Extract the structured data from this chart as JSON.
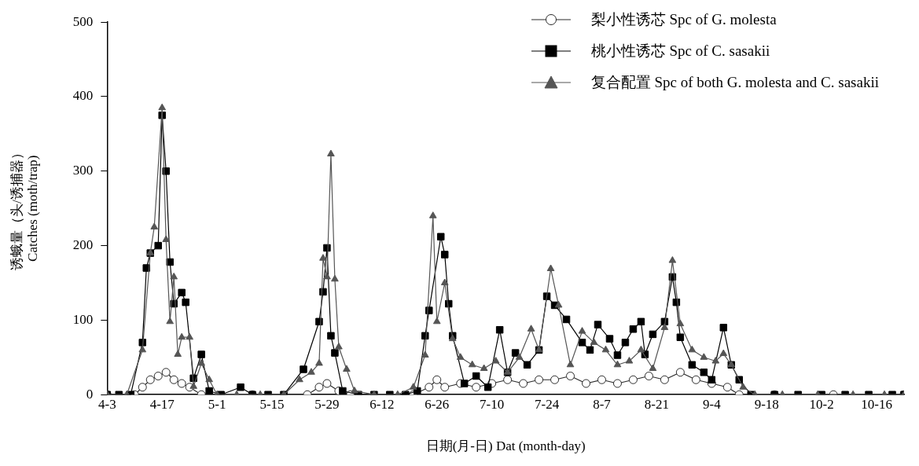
{
  "chart_data": {
    "type": "line",
    "xlabel": "日期(月-日) Dat (month-day)",
    "ylabel": "诱蛾量（头/诱捕器）\nCatches (moth/trap)",
    "xlim": [
      "--04-03",
      "--10-23"
    ],
    "ylim": [
      0,
      500
    ],
    "yticks": [
      0,
      100,
      200,
      300,
      400,
      500
    ],
    "xticks": [
      {
        "value": "--04-03",
        "label": "4-3"
      },
      {
        "value": "--04-17",
        "label": "4-17"
      },
      {
        "value": "--05-01",
        "label": "5-1"
      },
      {
        "value": "--05-15",
        "label": "5-15"
      },
      {
        "value": "--05-29",
        "label": "5-29"
      },
      {
        "value": "--06-12",
        "label": "6-12"
      },
      {
        "value": "--06-26",
        "label": "6-26"
      },
      {
        "value": "--07-10",
        "label": "7-10"
      },
      {
        "value": "--07-24",
        "label": "7-24"
      },
      {
        "value": "--08-07",
        "label": "8-7"
      },
      {
        "value": "--08-21",
        "label": "8-21"
      },
      {
        "value": "--09-04",
        "label": "9-4"
      },
      {
        "value": "--09-18",
        "label": "9-18"
      },
      {
        "value": "--10-02",
        "label": "10-2"
      },
      {
        "value": "--10-16",
        "label": "10-16"
      }
    ],
    "grid": false,
    "legend": "top right",
    "line_style": "solid",
    "series": [
      {
        "name": "梨小性诱芯 Spc of G. molesta",
        "color": "#2a2a2a",
        "marker": "circle",
        "x": [
          "--04-03",
          "--04-10",
          "--04-12",
          "--04-14",
          "--04-16",
          "--04-18",
          "--04-20",
          "--04-22",
          "--04-24",
          "--04-27",
          "--05-10",
          "--05-24",
          "--05-27",
          "--05-29",
          "--06-01",
          "--06-04",
          "--06-20",
          "--06-24",
          "--06-26",
          "--06-28",
          "--07-02",
          "--07-06",
          "--07-10",
          "--07-14",
          "--07-18",
          "--07-22",
          "--07-26",
          "--07-30",
          "--08-03",
          "--08-07",
          "--08-11",
          "--08-15",
          "--08-19",
          "--08-23",
          "--08-27",
          "--08-31",
          "--09-04",
          "--09-08",
          "--09-11",
          "--09-20",
          "--10-05",
          "--10-23"
        ],
        "values": [
          0,
          0,
          10,
          20,
          25,
          30,
          20,
          15,
          10,
          0,
          0,
          0,
          10,
          15,
          5,
          0,
          0,
          10,
          20,
          10,
          15,
          10,
          15,
          20,
          15,
          20,
          20,
          25,
          15,
          20,
          15,
          20,
          25,
          20,
          30,
          20,
          15,
          10,
          0,
          0,
          0,
          0
        ]
      },
      {
        "name": "桃小性诱芯 Spc of C. sasakii",
        "color": "#000000",
        "marker": "square",
        "x": [
          "--04-03",
          "--04-06",
          "--04-09",
          "--04-12",
          "--04-13",
          "--04-14",
          "--04-16",
          "--04-17",
          "--04-18",
          "--04-19",
          "--04-20",
          "--04-22",
          "--04-23",
          "--04-25",
          "--04-27",
          "--04-29",
          "--05-02",
          "--05-07",
          "--05-10",
          "--05-14",
          "--05-18",
          "--05-23",
          "--05-27",
          "--05-28",
          "--05-29",
          "--05-30",
          "--05-31",
          "--06-02",
          "--06-06",
          "--06-10",
          "--06-14",
          "--06-18",
          "--06-21",
          "--06-23",
          "--06-24",
          "--06-27",
          "--06-28",
          "--06-29",
          "--06-30",
          "--07-03",
          "--07-06",
          "--07-09",
          "--07-12",
          "--07-14",
          "--07-16",
          "--07-19",
          "--07-22",
          "--07-24",
          "--07-26",
          "--07-29",
          "--08-02",
          "--08-04",
          "--08-06",
          "--08-09",
          "--08-11",
          "--08-13",
          "--08-15",
          "--08-17",
          "--08-18",
          "--08-20",
          "--08-23",
          "--08-25",
          "--08-26",
          "--08-27",
          "--08-30",
          "--09-02",
          "--09-04",
          "--09-07",
          "--09-09",
          "--09-11",
          "--09-14",
          "--09-20",
          "--09-26",
          "--10-02",
          "--10-08",
          "--10-14",
          "--10-20",
          "--10-23"
        ],
        "values": [
          0,
          0,
          0,
          70,
          170,
          190,
          200,
          375,
          300,
          178,
          122,
          137,
          124,
          22,
          54,
          5,
          0,
          10,
          0,
          0,
          0,
          34,
          98,
          138,
          197,
          79,
          56,
          5,
          0,
          0,
          0,
          0,
          5,
          79,
          113,
          212,
          188,
          122,
          79,
          15,
          25,
          10,
          87,
          30,
          56,
          40,
          60,
          132,
          120,
          101,
          70,
          60,
          94,
          75,
          53,
          70,
          88,
          98,
          54,
          81,
          98,
          158,
          124,
          77,
          40,
          30,
          20,
          90,
          40,
          20,
          0,
          0,
          0,
          0,
          0,
          0,
          0,
          0
        ]
      },
      {
        "name": "复合配置 Spc of both G. molesta and C. sasakii",
        "color": "#555555",
        "marker": "triangle",
        "x": [
          "--04-03",
          "--04-08",
          "--04-12",
          "--04-14",
          "--04-15",
          "--04-17",
          "--04-18",
          "--04-19",
          "--04-20",
          "--04-21",
          "--04-22",
          "--04-24",
          "--04-25",
          "--04-27",
          "--04-29",
          "--05-01",
          "--05-06",
          "--05-12",
          "--05-18",
          "--05-22",
          "--05-25",
          "--05-27",
          "--05-28",
          "--05-29",
          "--05-30",
          "--05-31",
          "--06-01",
          "--06-03",
          "--06-05",
          "--06-10",
          "--06-16",
          "--06-20",
          "--06-23",
          "--06-25",
          "--06-26",
          "--06-28",
          "--06-30",
          "--07-02",
          "--07-05",
          "--07-08",
          "--07-11",
          "--07-14",
          "--07-17",
          "--07-20",
          "--07-22",
          "--07-25",
          "--07-27",
          "--07-30",
          "--08-02",
          "--08-05",
          "--08-08",
          "--08-11",
          "--08-14",
          "--08-17",
          "--08-20",
          "--08-23",
          "--08-25",
          "--08-27",
          "--08-30",
          "--09-02",
          "--09-05",
          "--09-07",
          "--09-09",
          "--09-12",
          "--09-15",
          "--09-22",
          "--10-01",
          "--10-10",
          "--10-18",
          "--10-23"
        ],
        "values": [
          0,
          0,
          60,
          190,
          225,
          385,
          208,
          98,
          158,
          54,
          77,
          77,
          11,
          42,
          20,
          0,
          0,
          0,
          0,
          20,
          30,
          42,
          183,
          158,
          323,
          155,
          64,
          34,
          5,
          0,
          0,
          10,
          53,
          240,
          98,
          150,
          75,
          50,
          40,
          35,
          45,
          30,
          50,
          88,
          60,
          169,
          120,
          40,
          85,
          70,
          60,
          40,
          45,
          60,
          35,
          90,
          180,
          95,
          60,
          50,
          45,
          55,
          40,
          10,
          0,
          0,
          0,
          0,
          0,
          0
        ]
      }
    ]
  }
}
